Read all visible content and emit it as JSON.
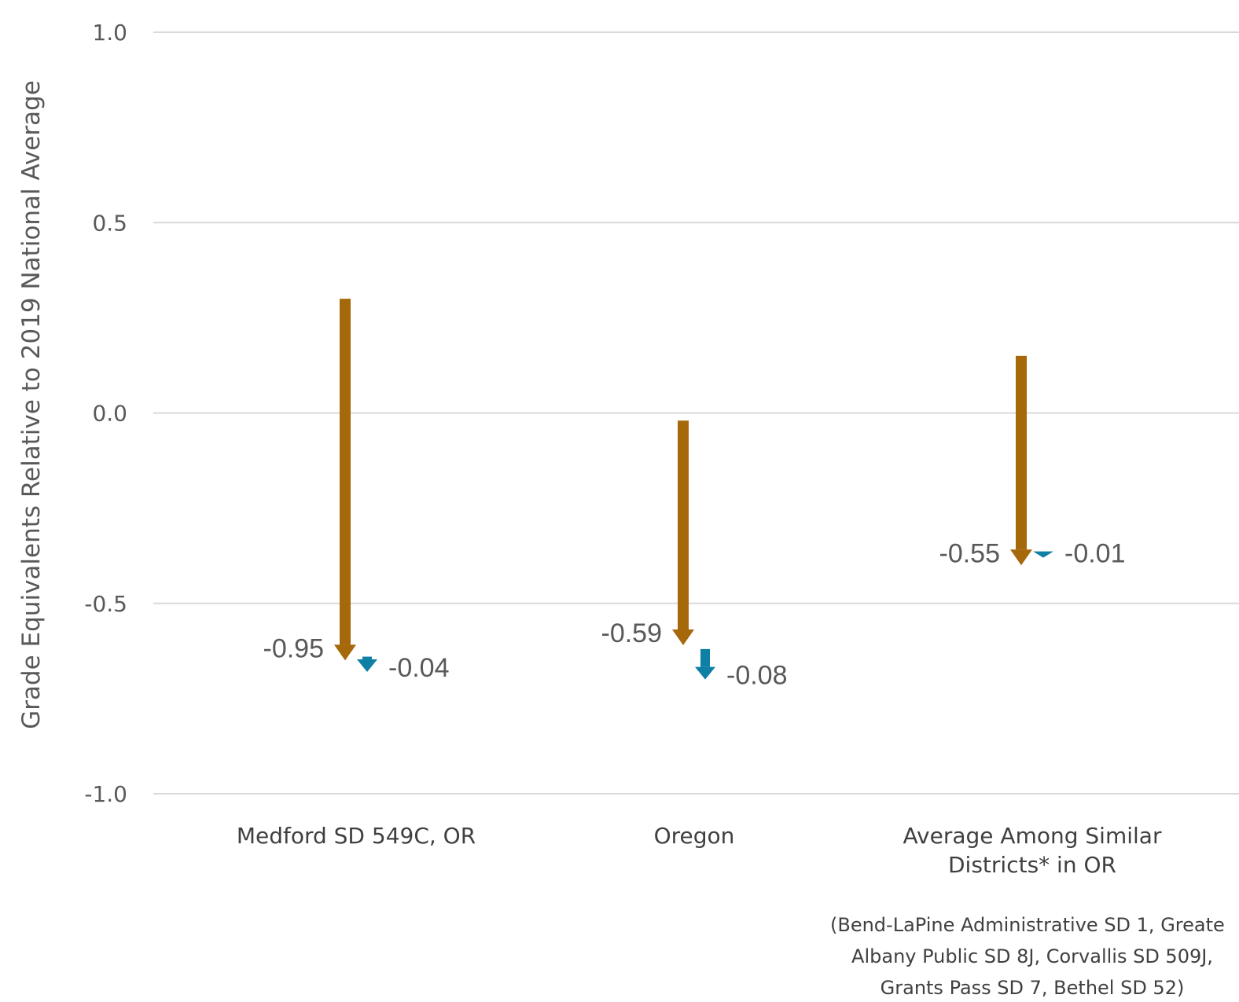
{
  "chart_data": {
    "type": "arrow",
    "ylabel": "Grade Equivalents Relative to 2019 National Average",
    "ylim": [
      -1.0,
      1.0
    ],
    "yticks": [
      "1.0",
      "0.5",
      "0.0",
      "-0.5",
      "-1.0"
    ],
    "grid": true,
    "categories": [
      {
        "label_lines": [
          "Medford SD 549C, OR"
        ]
      },
      {
        "label_lines": [
          "Oregon"
        ]
      },
      {
        "label_lines": [
          "Average Among Similar",
          "Districts* in OR"
        ]
      }
    ],
    "series": [
      {
        "color": "#A5680A",
        "start": [
          0.3,
          -0.02,
          0.15
        ],
        "end": [
          -0.65,
          -0.61,
          -0.4
        ],
        "labels": [
          "-0.95",
          "-0.59",
          "-0.55"
        ]
      },
      {
        "color": "#0E7FA5",
        "start": [
          -0.64,
          -0.62,
          -0.37
        ],
        "end": [
          -0.68,
          -0.7,
          -0.38
        ],
        "labels": [
          "-0.04",
          "-0.08",
          "-0.01"
        ]
      }
    ],
    "footnote_lines": [
      "(Bend-LaPine Administrative SD 1, Greate",
      "Albany Public SD 8J, Corvallis SD 509J,",
      "Grants Pass SD 7, Bethel SD 52)"
    ]
  }
}
